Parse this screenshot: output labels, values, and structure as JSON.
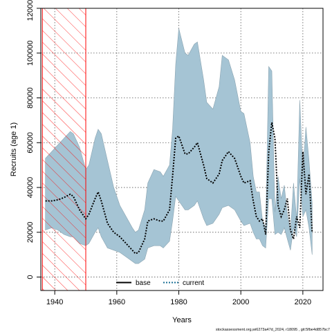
{
  "chart_data": {
    "type": "area",
    "xlabel": "Years",
    "ylabel": "Recruits (age 1)",
    "xlim": [
      1935.5,
      2026.5
    ],
    "ylim": [
      -6000,
      120000
    ],
    "x_ticks": [
      1940,
      1960,
      1980,
      2000,
      2020
    ],
    "x_tick_labels": [
      "1940",
      "1960",
      "1980",
      "2000",
      "2020"
    ],
    "y_ticks": [
      0,
      20000,
      40000,
      60000,
      80000,
      100000,
      120000
    ],
    "y_tick_labels": [
      "0",
      "20000",
      "40000",
      "60000",
      "80000",
      "100000",
      "120000"
    ],
    "grid": true,
    "legend_position": "bottom",
    "hatched_region": {
      "x_start": 1936,
      "x_end": 1950,
      "color": "#ff0000"
    },
    "ribbon": {
      "color": "#a5c4d4",
      "years": [
        1937,
        1939,
        1941,
        1943,
        1945,
        1946,
        1948,
        1950,
        1951,
        1953,
        1954,
        1955,
        1957,
        1959,
        1961,
        1963,
        1965,
        1966,
        1967,
        1969,
        1970,
        1972,
        1974,
        1975,
        1977,
        1978,
        1979,
        1980,
        1982,
        1983,
        1985,
        1986,
        1988,
        1989,
        1991,
        1993,
        1994,
        1996,
        1998,
        2000,
        2001,
        2003,
        2004,
        2005,
        2006,
        2007,
        2008,
        2009,
        2010,
        2011,
        2012,
        2013,
        2014,
        2015,
        2016,
        2017,
        2018,
        2019,
        2020,
        2021,
        2022,
        2023
      ],
      "upper": [
        53000,
        56000,
        59000,
        62000,
        65000,
        64000,
        58000,
        48000,
        50000,
        62000,
        66000,
        64000,
        52000,
        40000,
        32000,
        27000,
        22000,
        20000,
        21000,
        30000,
        42000,
        48000,
        47000,
        45000,
        50000,
        66000,
        95000,
        111000,
        100000,
        99000,
        104000,
        105000,
        88000,
        78000,
        75000,
        85000,
        99000,
        97000,
        88000,
        74000,
        73000,
        60000,
        45000,
        38000,
        38000,
        25000,
        22000,
        94000,
        92000,
        29000,
        45000,
        35000,
        41000,
        28000,
        20000,
        42000,
        26000,
        79000,
        47000,
        67000,
        52000,
        33000
      ],
      "lower": [
        21000,
        22000,
        21000,
        19000,
        18000,
        18000,
        15000,
        14000,
        15000,
        20000,
        22000,
        18000,
        13000,
        12000,
        11000,
        9000,
        7000,
        6000,
        6000,
        8000,
        13000,
        14000,
        14000,
        13000,
        16000,
        25000,
        36000,
        34000,
        30000,
        30000,
        32000,
        34000,
        26000,
        23000,
        24000,
        28000,
        31000,
        32000,
        30000,
        25000,
        23000,
        24000,
        20000,
        17000,
        17000,
        14000,
        13000,
        35000,
        35000,
        19000,
        20000,
        19000,
        22000,
        17000,
        12000,
        22000,
        18000,
        44000,
        27000,
        30000,
        22000,
        10000
      ]
    },
    "series": [
      {
        "name": "current",
        "color": "#000000",
        "style": "dotted",
        "years": [
          1937,
          1939,
          1941,
          1943,
          1945,
          1946,
          1948,
          1950,
          1951,
          1953,
          1954,
          1955,
          1957,
          1959,
          1961,
          1963,
          1965,
          1966,
          1967,
          1969,
          1970,
          1972,
          1974,
          1975,
          1977,
          1978,
          1979,
          1980,
          1982,
          1983,
          1985,
          1986,
          1988,
          1989,
          1991,
          1993,
          1994,
          1996,
          1998,
          2000,
          2001,
          2003,
          2004,
          2005,
          2006,
          2007,
          2008,
          2009,
          2010,
          2011,
          2012,
          2013,
          2014,
          2015,
          2016,
          2017,
          2018,
          2019,
          2020,
          2021,
          2022,
          2023
        ],
        "values": [
          34000,
          34000,
          34500,
          35500,
          37000,
          36000,
          30000,
          26000,
          28000,
          35000,
          38000,
          34000,
          24000,
          20000,
          18000,
          15000,
          12000,
          10500,
          11000,
          17000,
          25000,
          26000,
          25000,
          25000,
          30000,
          45000,
          62000,
          63000,
          55000,
          55000,
          58000,
          60000,
          50000,
          44000,
          42000,
          46000,
          52000,
          56000,
          53000,
          45000,
          42000,
          43000,
          34000,
          27000,
          25000,
          26000,
          19000,
          56000,
          69000,
          62000,
          32000,
          27000,
          30000,
          35000,
          21000,
          17000,
          27000,
          22000,
          56000,
          37000,
          46000,
          20000
        ]
      },
      {
        "name": "base",
        "color": "#000000",
        "style": "solid"
      }
    ]
  },
  "footer": {
    "credit": "stockassessment.org,wi6273a47d_2024, r18095 , git:5fbe4d857bc7"
  }
}
